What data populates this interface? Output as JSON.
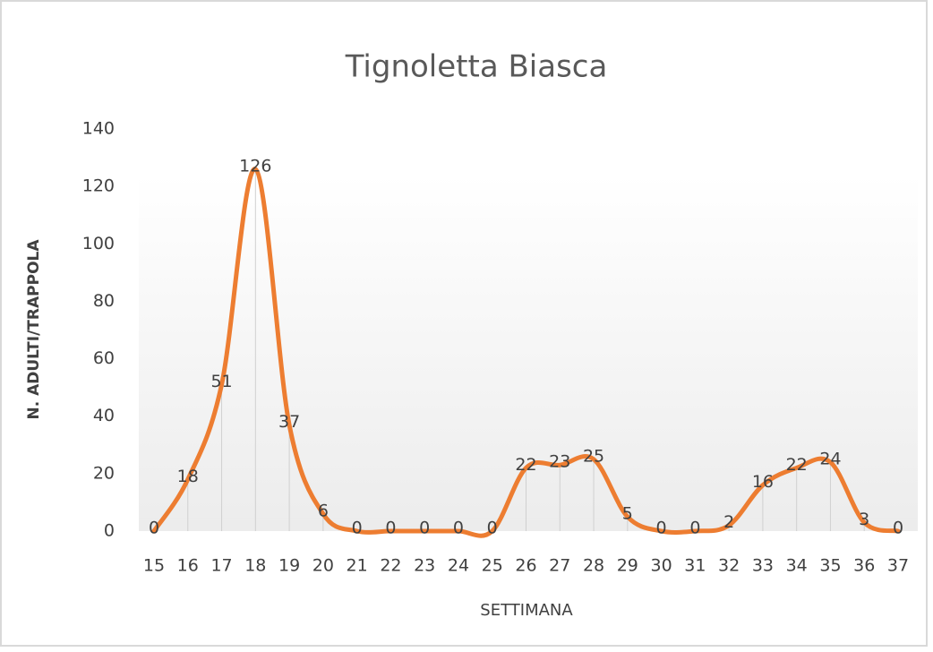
{
  "chart_data": {
    "type": "line",
    "title": "Tignoletta Biasca",
    "x_label": "SETTIMANA",
    "y_label": "N. ADULTI/TRAPPOLA",
    "categories": [
      "15",
      "16",
      "17",
      "18",
      "19",
      "20",
      "21",
      "22",
      "23",
      "24",
      "25",
      "26",
      "27",
      "28",
      "29",
      "30",
      "31",
      "32",
      "33",
      "34",
      "35",
      "36",
      "37"
    ],
    "series": [
      {
        "name": "Tignoletta Biasca",
        "color": "#ed7d31",
        "values": [
          0,
          18,
          51,
          126,
          37,
          6,
          0,
          0,
          0,
          0,
          0,
          22,
          23,
          25,
          5,
          0,
          0,
          2,
          16,
          22,
          24,
          3,
          0
        ]
      }
    ],
    "ylim": [
      0,
      140
    ],
    "yticks": [
      0,
      20,
      40,
      60,
      80,
      100,
      120,
      140
    ],
    "drop_lines": true,
    "data_labels": true,
    "smooth": true
  }
}
